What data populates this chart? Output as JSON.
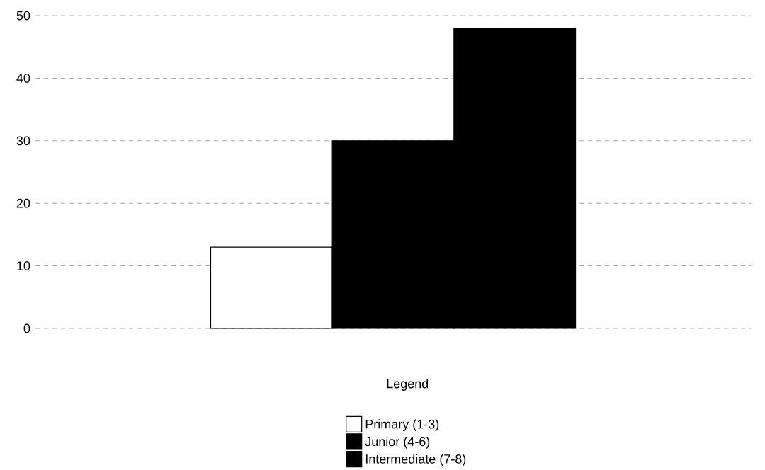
{
  "chart_data": {
    "type": "bar",
    "categories": [
      null
    ],
    "series": [
      {
        "name": "Primary (1-3)",
        "color": "#ffffff",
        "values": [
          13
        ]
      },
      {
        "name": "Junior (4-6)",
        "color": "#000000",
        "values": [
          30
        ]
      },
      {
        "name": "Intermediate (7-8)",
        "color": "#000000",
        "values": [
          48
        ]
      }
    ],
    "legend_title": "Legend",
    "legend": "bottom",
    "grid": "y",
    "ylim": [
      0,
      50
    ],
    "yticks": [
      0,
      10,
      20,
      30,
      40,
      50
    ],
    "tick_labels": "y"
  }
}
